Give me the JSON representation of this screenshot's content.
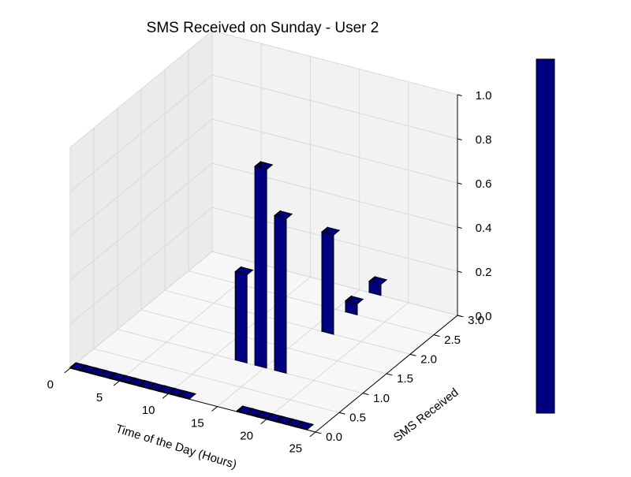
{
  "chart_data": {
    "type": "bar3d",
    "title": "SMS Received on Sunday - User 2",
    "xlabel": "Time of the Day (Hours)",
    "ylabel": "SMS Received",
    "zlabel": "",
    "xlim": [
      0,
      25
    ],
    "ylim": [
      0,
      3
    ],
    "zlim": [
      0,
      1
    ],
    "x_ticks": [
      "0",
      "5",
      "10",
      "15",
      "20",
      "25"
    ],
    "y_ticks": [
      "0.0",
      "0.5",
      "1.0",
      "1.5",
      "2.0",
      "2.5",
      "3.0"
    ],
    "z_ticks": [
      "0.0",
      "0.2",
      "0.4",
      "0.6",
      "0.8",
      "1.0"
    ],
    "grid": true,
    "colorbar": true,
    "bars": [
      {
        "hour": 0,
        "sms": 0,
        "value": 0
      },
      {
        "hour": 1,
        "sms": 0,
        "value": 0
      },
      {
        "hour": 2,
        "sms": 0,
        "value": 0
      },
      {
        "hour": 3,
        "sms": 0,
        "value": 0
      },
      {
        "hour": 4,
        "sms": 0,
        "value": 0
      },
      {
        "hour": 5,
        "sms": 0,
        "value": 0
      },
      {
        "hour": 6,
        "sms": 0,
        "value": 0
      },
      {
        "hour": 7,
        "sms": 0,
        "value": 0
      },
      {
        "hour": 8,
        "sms": 0,
        "value": 0
      },
      {
        "hour": 9,
        "sms": 0,
        "value": 0
      },
      {
        "hour": 10,
        "sms": 0,
        "value": 0
      },
      {
        "hour": 11,
        "sms": 0,
        "value": 0
      },
      {
        "hour": 12,
        "sms": 1,
        "value": 0.4
      },
      {
        "hour": 14,
        "sms": 1,
        "value": 0.9
      },
      {
        "hour": 16,
        "sms": 1,
        "value": 0.7
      },
      {
        "hour": 16,
        "sms": 2,
        "value": 0.45
      },
      {
        "hour": 16,
        "sms": 2.5,
        "value": 0.05
      },
      {
        "hour": 16,
        "sms": 3,
        "value": 0.05
      },
      {
        "hour": 17,
        "sms": 0,
        "value": 0
      },
      {
        "hour": 18,
        "sms": 0,
        "value": 0
      },
      {
        "hour": 19,
        "sms": 0,
        "value": 0
      },
      {
        "hour": 20,
        "sms": 0,
        "value": 0
      },
      {
        "hour": 21,
        "sms": 0,
        "value": 0
      },
      {
        "hour": 22,
        "sms": 0,
        "value": 0
      },
      {
        "hour": 23,
        "sms": 0,
        "value": 0
      }
    ],
    "bar_color": "#000080",
    "edge_color": "#000000"
  }
}
